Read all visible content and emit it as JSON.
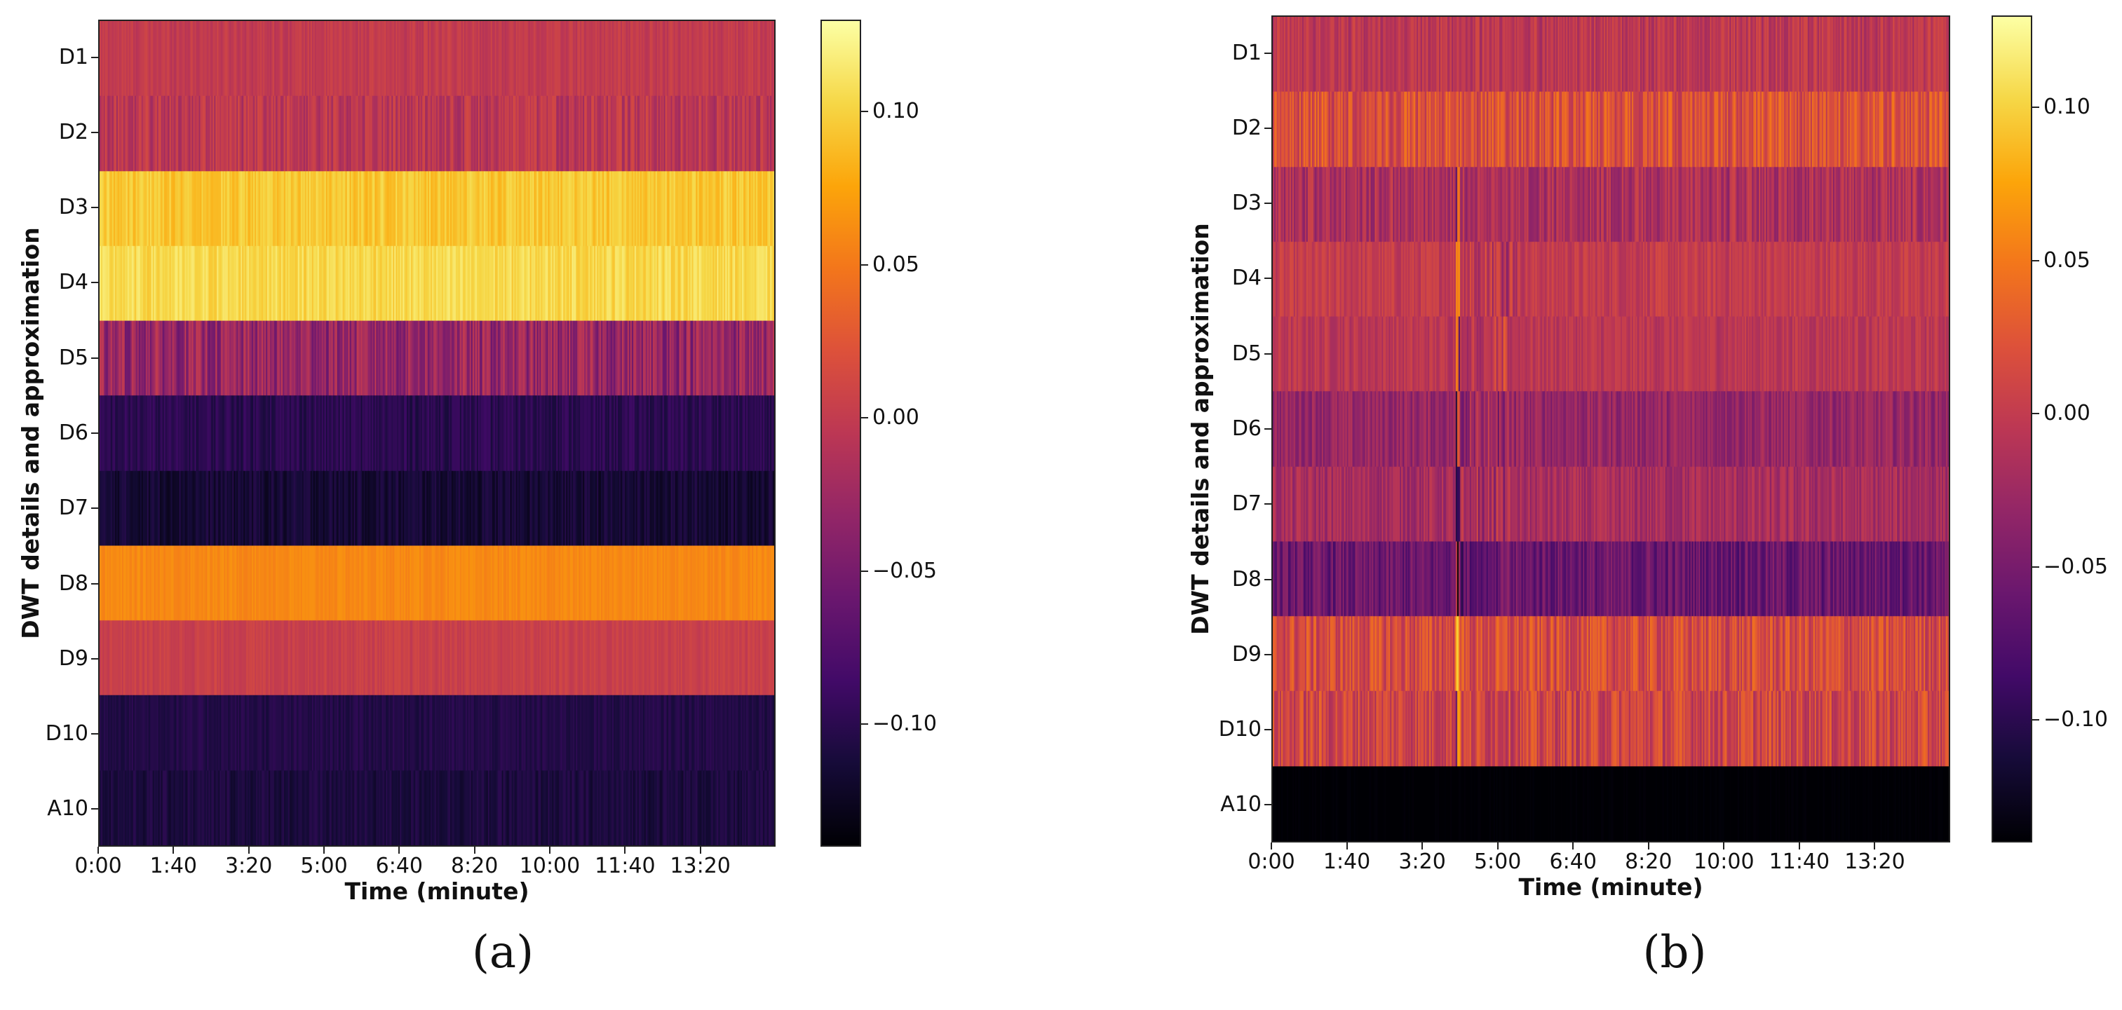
{
  "chart_data": [
    {
      "type": "heatmap",
      "panel": "(a)",
      "xlabel": "Time (minute)",
      "ylabel": "DWT details and approximation",
      "rows": [
        "D1",
        "D2",
        "D3",
        "D4",
        "D5",
        "D6",
        "D7",
        "D8",
        "D9",
        "D10",
        "A10"
      ],
      "x_ticks": [
        "0:00",
        "1:40",
        "3:20",
        "5:00",
        "6:40",
        "8:20",
        "10:00",
        "11:40",
        "13:20"
      ],
      "x_tick_seconds": [
        0,
        100,
        200,
        300,
        400,
        500,
        600,
        700,
        800
      ],
      "x_range_seconds": [
        0,
        900
      ],
      "row_mean_values": [
        0.0,
        -0.005,
        0.095,
        0.105,
        -0.03,
        -0.1,
        -0.115,
        0.06,
        0.005,
        -0.105,
        -0.11
      ],
      "row_noise": [
        0.01,
        0.02,
        0.012,
        0.012,
        0.03,
        0.012,
        0.012,
        0.006,
        0.008,
        0.008,
        0.01
      ],
      "colorbar": {
        "min": -0.14,
        "max": 0.13,
        "ticks": [
          0.1,
          0.05,
          0.0,
          -0.05,
          -0.1
        ],
        "tick_labels": [
          "0.10",
          "0.05",
          "0.00",
          "−0.05",
          "−0.10"
        ],
        "colormap": "inferno"
      }
    },
    {
      "type": "heatmap",
      "panel": "(b)",
      "xlabel": "Time (minute)",
      "ylabel": "DWT details and approximation",
      "rows": [
        "D1",
        "D2",
        "D3",
        "D4",
        "D5",
        "D6",
        "D7",
        "D8",
        "D9",
        "D10",
        "A10"
      ],
      "x_ticks": [
        "0:00",
        "1:40",
        "3:20",
        "5:00",
        "6:40",
        "8:20",
        "10:00",
        "11:40",
        "13:20"
      ],
      "x_tick_seconds": [
        0,
        100,
        200,
        300,
        400,
        500,
        600,
        700,
        800
      ],
      "x_range_seconds": [
        0,
        900
      ],
      "row_mean_values": [
        -0.005,
        0.02,
        -0.015,
        0.0,
        -0.005,
        -0.03,
        -0.02,
        -0.06,
        0.015,
        0.01,
        -0.14
      ],
      "row_noise": [
        0.02,
        0.03,
        0.025,
        0.015,
        0.015,
        0.02,
        0.02,
        0.025,
        0.03,
        0.03,
        0.003
      ],
      "event_second": 245,
      "colorbar": {
        "min": -0.14,
        "max": 0.13,
        "ticks": [
          0.1,
          0.05,
          0.0,
          -0.05,
          -0.1
        ],
        "tick_labels": [
          "0.10",
          "0.05",
          "0.00",
          "−0.05",
          "−0.10"
        ],
        "colormap": "inferno"
      }
    }
  ]
}
